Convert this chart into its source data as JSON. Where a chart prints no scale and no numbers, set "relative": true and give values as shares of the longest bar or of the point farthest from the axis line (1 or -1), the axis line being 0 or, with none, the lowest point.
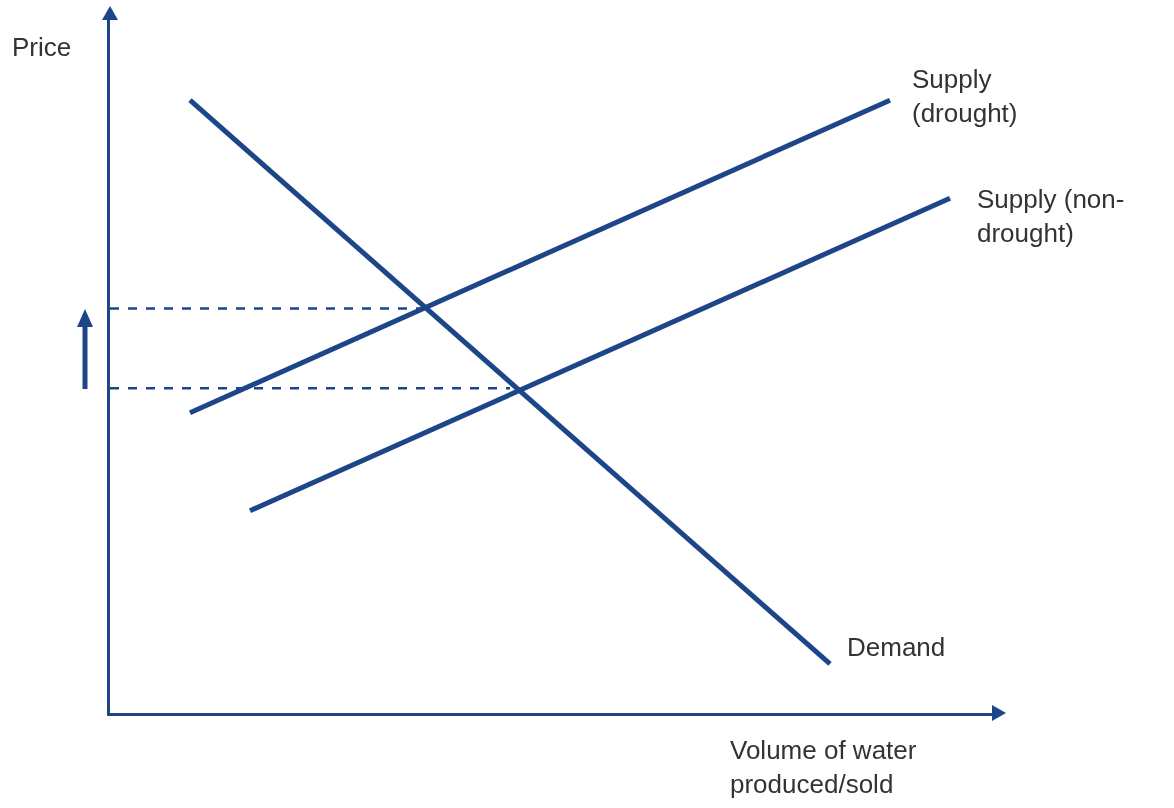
{
  "chart_data": {
    "type": "line",
    "relative": true,
    "xlabel": "Volume of water produced/sold",
    "ylabel": "Price",
    "legend": false,
    "marker": "none",
    "tick_labels": false,
    "categories": [
      null,
      null,
      null,
      null,
      null,
      null,
      null,
      null,
      null,
      null,
      null,
      null,
      null,
      null,
      null,
      null,
      null,
      null,
      null,
      null,
      null,
      null,
      null,
      null,
      null,
      null,
      null,
      null,
      null,
      null,
      null,
      null,
      null,
      null,
      null,
      null,
      null,
      null,
      null,
      null,
      null,
      null,
      null,
      null,
      null
    ],
    "series": [
      {
        "name": "Demand",
        "color": "#1d4689",
        "values": [
          null,
          null,
          null,
          null,
          1.0,
          null,
          null,
          null,
          null,
          null,
          null,
          null,
          null,
          null,
          null,
          null,
          null,
          null,
          null,
          null,
          null,
          null,
          null,
          null,
          null,
          null,
          null,
          null,
          null,
          null,
          null,
          null,
          null,
          null,
          null,
          null,
          0.08,
          null,
          null,
          null,
          null,
          null,
          null,
          null,
          null
        ]
      },
      {
        "name": "Supply (drought)",
        "color": "#1d4689",
        "values": [
          null,
          null,
          null,
          null,
          0.49,
          null,
          null,
          null,
          null,
          null,
          null,
          null,
          null,
          null,
          null,
          null,
          null,
          null,
          null,
          null,
          null,
          null,
          null,
          null,
          null,
          null,
          null,
          null,
          null,
          null,
          null,
          null,
          null,
          null,
          null,
          null,
          null,
          null,
          null,
          1.0,
          null,
          null,
          null,
          null,
          null
        ]
      },
      {
        "name": "Supply (non-drought)",
        "color": "#1d4689",
        "values": [
          null,
          null,
          null,
          null,
          null,
          null,
          null,
          0.33,
          null,
          null,
          null,
          null,
          null,
          null,
          null,
          null,
          null,
          null,
          null,
          null,
          null,
          null,
          null,
          null,
          null,
          null,
          null,
          null,
          null,
          null,
          null,
          null,
          null,
          null,
          null,
          null,
          null,
          null,
          null,
          null,
          null,
          null,
          0.84,
          null,
          null
        ]
      },
      {
        "color": "#1d4689",
        "line_style": "dashed",
        "values": [
          0.66,
          null,
          null,
          null,
          null,
          null,
          null,
          null,
          null,
          null,
          null,
          null,
          null,
          null,
          null,
          null,
          0.66,
          null,
          null,
          null,
          null,
          null,
          null,
          null,
          null,
          null,
          null,
          null,
          null,
          null,
          null,
          null,
          null,
          null,
          null,
          null,
          null,
          null,
          null,
          null,
          null,
          null,
          null,
          null,
          null
        ]
      },
      {
        "color": "#1d4689",
        "line_style": "dashed",
        "values": [
          0.53,
          null,
          null,
          null,
          null,
          null,
          null,
          null,
          null,
          null,
          null,
          null,
          null,
          null,
          null,
          null,
          null,
          null,
          null,
          null,
          0.53,
          null,
          null,
          null,
          null,
          null,
          null,
          null,
          null,
          null,
          null,
          null,
          null,
          null,
          null,
          null,
          null,
          null,
          null,
          null,
          null,
          null,
          null,
          null,
          null
        ]
      }
    ]
  }
}
